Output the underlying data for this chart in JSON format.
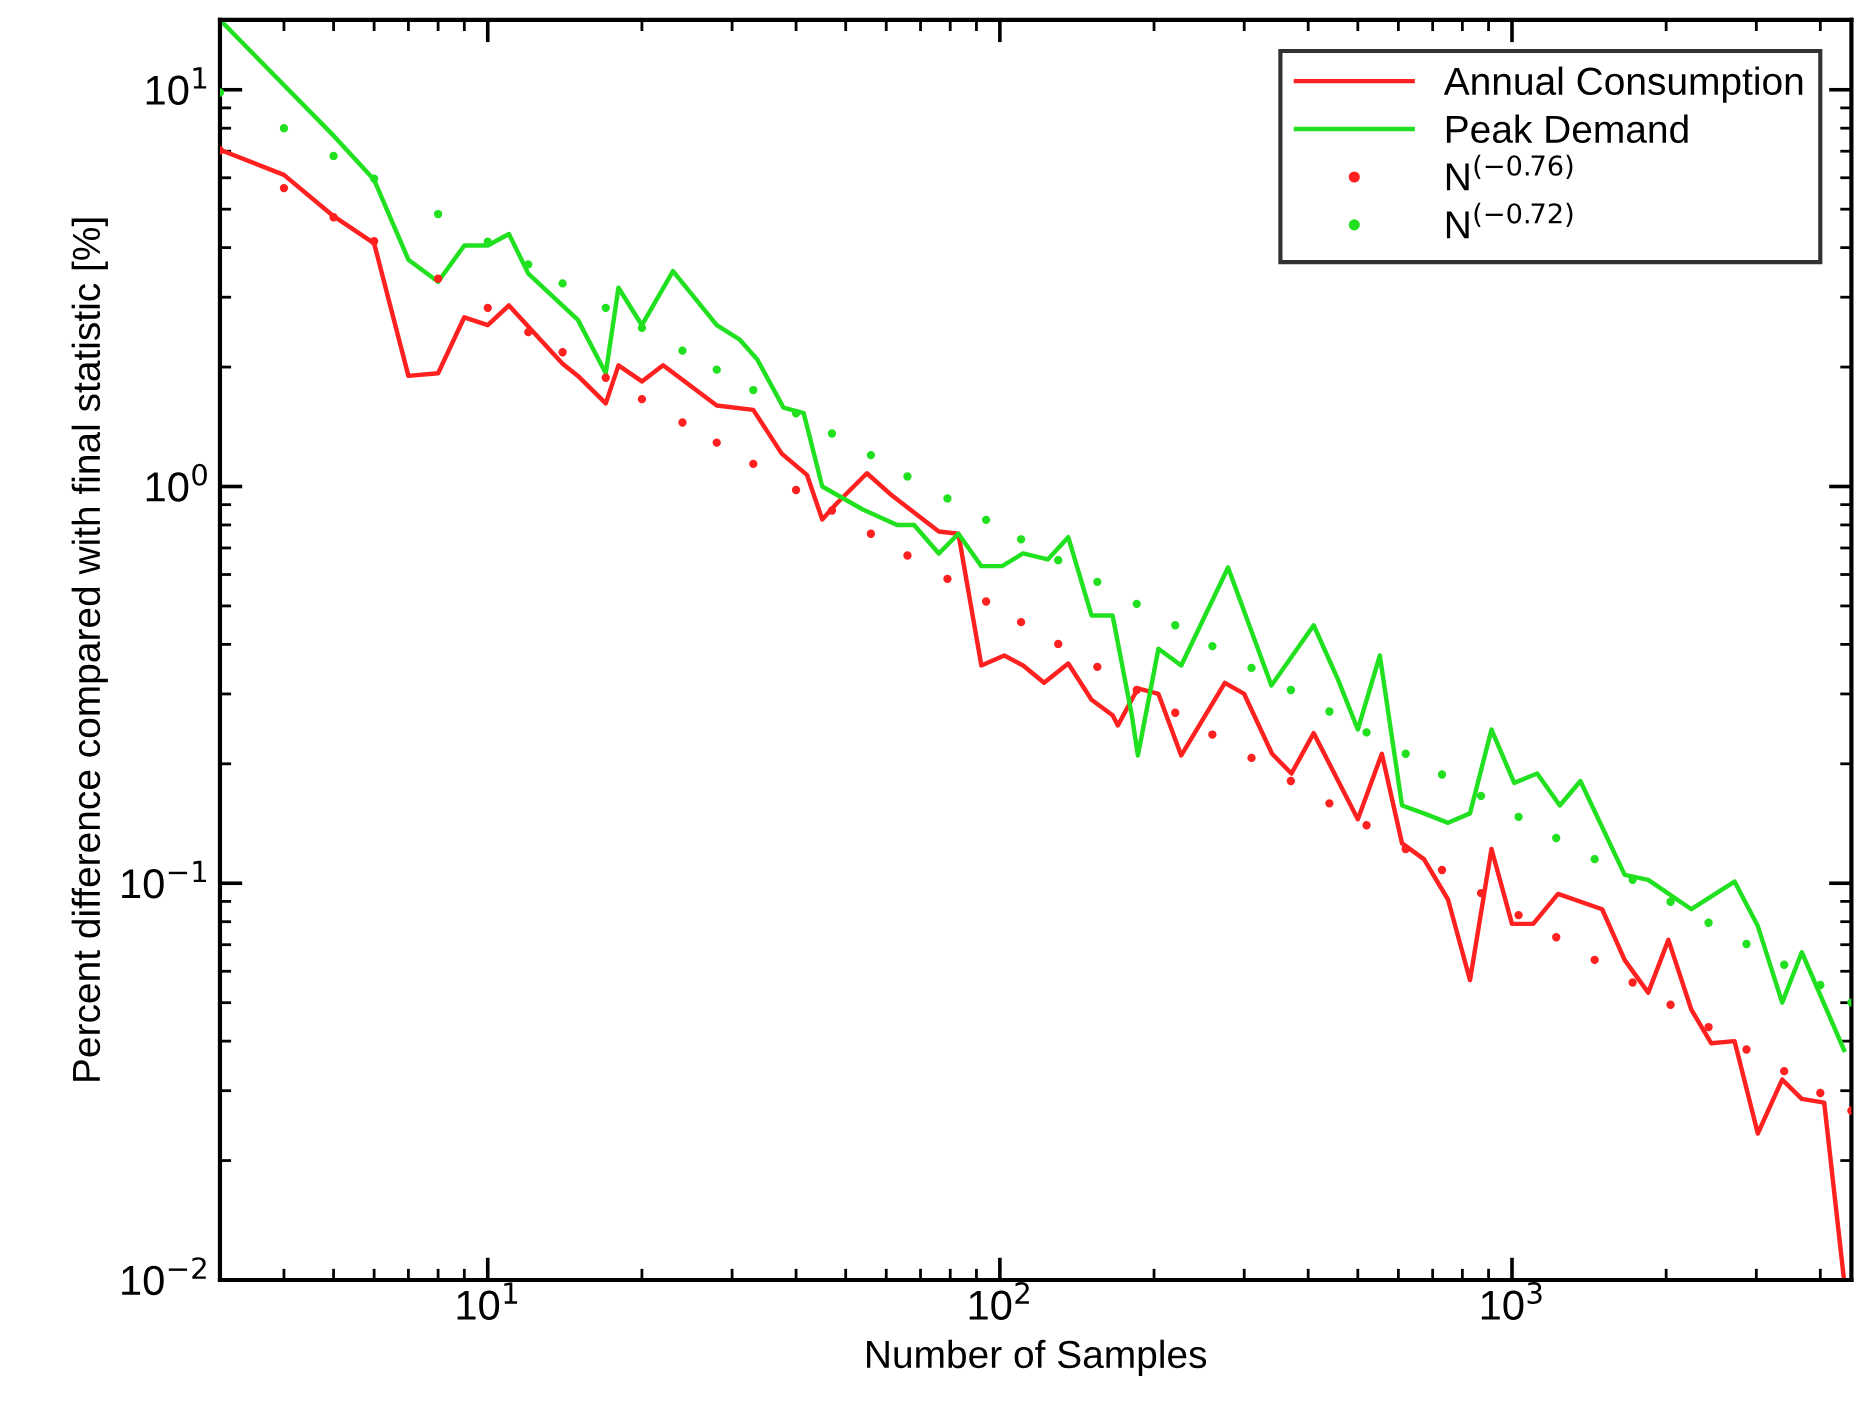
{
  "chart_data": {
    "type": "line",
    "xlabel": "Number of Samples",
    "ylabel": "Percent difference compared with final statistic [%]",
    "log": "xy",
    "grid": false,
    "legend": "top right",
    "xlim": [
      3,
      4600
    ],
    "ylim": [
      0.01,
      15
    ],
    "xticks": [
      {
        "value": 10,
        "label": "10$^{1}$"
      },
      {
        "value": 100,
        "label": "10$^{2}$"
      },
      {
        "value": 1000,
        "label": "10$^{3}$"
      }
    ],
    "yticks": [
      {
        "value": 0.01,
        "label": "10$^{−2}$"
      },
      {
        "value": 0.1,
        "label": "10$^{−1}$"
      },
      {
        "value": 1,
        "label": "10$^{0}$"
      },
      {
        "value": 10,
        "label": "10$^{1}$"
      }
    ],
    "series": [
      {
        "name": "Annual Consumption",
        "color": "#ff2020",
        "line_style": "solid",
        "marker": "none",
        "x": [
          3,
          4,
          5,
          6,
          7,
          8,
          9,
          10,
          11,
          14,
          15,
          17,
          18,
          20,
          22,
          28,
          33,
          37.5,
          42,
          45,
          48,
          55,
          61.5,
          76,
          83,
          92,
          102,
          111,
          122,
          136,
          151,
          166,
          170,
          186,
          204,
          226,
          275,
          300,
          340,
          371,
          410,
          500,
          557,
          610,
          673,
          750,
          828,
          912,
          1000,
          1100,
          1230,
          1500,
          1660,
          1845,
          2020,
          2240,
          2450,
          2720,
          3020,
          3370,
          3680,
          4070,
          4450
        ],
        "values": [
          7.06,
          6.1,
          4.8,
          4.1,
          1.9,
          1.93,
          2.67,
          2.55,
          2.86,
          2.04,
          1.9,
          1.62,
          2.02,
          1.84,
          2.02,
          1.6,
          1.56,
          1.21,
          1.07,
          0.826,
          0.906,
          1.08,
          0.95,
          0.77,
          0.76,
          0.354,
          0.375,
          0.354,
          0.32,
          0.358,
          0.29,
          0.265,
          0.25,
          0.31,
          0.3,
          0.21,
          0.32,
          0.3,
          0.212,
          0.189,
          0.239,
          0.145,
          0.212,
          0.126,
          0.115,
          0.091,
          0.057,
          0.122,
          0.079,
          0.079,
          0.094,
          0.086,
          0.064,
          0.053,
          0.072,
          0.048,
          0.0395,
          0.04,
          0.0234,
          0.032,
          0.0286,
          0.028,
          0.01
        ]
      },
      {
        "name": "Peak Demand",
        "color": "#20e020",
        "line_style": "solid",
        "marker": "none",
        "x": [
          3,
          5,
          6,
          7,
          8,
          9,
          10,
          11,
          12,
          15,
          17,
          18,
          20,
          23,
          28,
          31,
          33.6,
          37.8,
          41.4,
          45,
          54,
          63,
          68,
          76,
          83,
          92,
          101,
          111,
          124,
          136,
          151,
          166,
          181,
          186,
          204,
          226,
          279,
          339,
          410,
          457,
          500,
          552,
          610,
          673,
          750,
          828,
          912,
          1010,
          1120,
          1240,
          1360,
          1660,
          1845,
          2240,
          2720,
          3020,
          3370,
          3680,
          4450
        ],
        "values": [
          15,
          7.66,
          5.93,
          3.73,
          3.28,
          4.05,
          4.05,
          4.33,
          3.44,
          2.63,
          1.93,
          3.17,
          2.55,
          3.49,
          2.55,
          2.35,
          2.09,
          1.58,
          1.53,
          1.0,
          0.875,
          0.8,
          0.8,
          0.678,
          0.76,
          0.63,
          0.63,
          0.678,
          0.655,
          0.745,
          0.473,
          0.473,
          0.265,
          0.21,
          0.39,
          0.354,
          0.625,
          0.315,
          0.447,
          0.327,
          0.244,
          0.375,
          0.157,
          0.15,
          0.142,
          0.15,
          0.244,
          0.179,
          0.189,
          0.157,
          0.181,
          0.105,
          0.102,
          0.086,
          0.101,
          0.078,
          0.05,
          0.067,
          0.038
        ]
      },
      {
        "name": "N$^{(−0.76)}$",
        "type": "scatter",
        "color": "#ff2020",
        "marker": "circle",
        "x": [
          3,
          4,
          5,
          6,
          8,
          10,
          12,
          14,
          17,
          20,
          24,
          28,
          33,
          40,
          47,
          56,
          66,
          79,
          94,
          110,
          130,
          155,
          185,
          220,
          260,
          310,
          370,
          440,
          520,
          620,
          730,
          870,
          1030,
          1220,
          1450,
          1720,
          2040,
          2420,
          2870,
          3400,
          4000,
          4600
        ],
        "values": [
          7.03,
          5.65,
          4.77,
          4.15,
          3.34,
          2.82,
          2.45,
          2.18,
          1.88,
          1.66,
          1.45,
          1.29,
          1.14,
          0.98,
          0.87,
          0.76,
          0.67,
          0.585,
          0.513,
          0.455,
          0.401,
          0.351,
          0.307,
          0.269,
          0.237,
          0.207,
          0.181,
          0.159,
          0.14,
          0.122,
          0.108,
          0.0944,
          0.0831,
          0.0731,
          0.0641,
          0.0562,
          0.0494,
          0.0434,
          0.0381,
          0.0336,
          0.0296,
          0.0267
        ]
      },
      {
        "name": "N$^{(−0.72)}$",
        "type": "scatter",
        "color": "#20e020",
        "marker": "circle",
        "x": [
          3,
          4,
          5,
          6,
          8,
          10,
          12,
          14,
          17,
          20,
          24,
          28,
          33,
          40,
          47,
          56,
          66,
          79,
          94,
          110,
          130,
          155,
          185,
          220,
          260,
          310,
          370,
          440,
          520,
          620,
          730,
          870,
          1030,
          1220,
          1450,
          1720,
          2040,
          2420,
          2870,
          3400,
          4000,
          4600
        ],
        "values": [
          9.84,
          8.0,
          6.81,
          5.97,
          4.86,
          4.14,
          3.63,
          3.25,
          2.82,
          2.51,
          2.2,
          1.97,
          1.75,
          1.53,
          1.36,
          1.2,
          1.06,
          0.933,
          0.824,
          0.736,
          0.652,
          0.575,
          0.506,
          0.447,
          0.396,
          0.349,
          0.307,
          0.271,
          0.24,
          0.212,
          0.188,
          0.166,
          0.147,
          0.13,
          0.115,
          0.102,
          0.0898,
          0.0795,
          0.0703,
          0.0623,
          0.0554,
          0.05
        ]
      }
    ]
  }
}
